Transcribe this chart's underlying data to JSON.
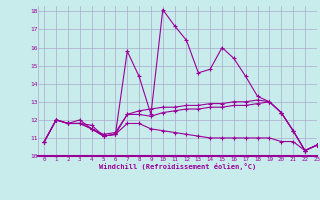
{
  "xlabel": "Windchill (Refroidissement éolien,°C)",
  "background_color": "#c8ecec",
  "grid_color": "#aaaacc",
  "line_color": "#990099",
  "xlim": [
    -0.5,
    23
  ],
  "ylim": [
    10,
    18.3
  ],
  "yticks": [
    10,
    11,
    12,
    13,
    14,
    15,
    16,
    17,
    18
  ],
  "xticks": [
    0,
    1,
    2,
    3,
    4,
    5,
    6,
    7,
    8,
    9,
    10,
    11,
    12,
    13,
    14,
    15,
    16,
    17,
    18,
    19,
    20,
    21,
    22,
    23
  ],
  "lines": [
    [
      10.8,
      12.0,
      11.8,
      11.8,
      11.7,
      11.1,
      11.2,
      15.8,
      14.4,
      12.3,
      18.1,
      17.2,
      16.4,
      14.6,
      14.8,
      16.0,
      15.4,
      14.4,
      13.3,
      13.0,
      12.4,
      11.4,
      10.3,
      10.6
    ],
    [
      10.8,
      12.0,
      11.8,
      12.0,
      11.5,
      11.2,
      11.3,
      12.3,
      12.5,
      12.6,
      12.7,
      12.7,
      12.8,
      12.8,
      12.9,
      12.9,
      13.0,
      13.0,
      13.1,
      13.0,
      12.4,
      11.4,
      10.3,
      10.6
    ],
    [
      10.8,
      12.0,
      11.8,
      11.8,
      11.5,
      11.1,
      11.2,
      12.3,
      12.3,
      12.2,
      12.4,
      12.5,
      12.6,
      12.6,
      12.7,
      12.7,
      12.8,
      12.8,
      12.9,
      13.0,
      12.4,
      11.4,
      10.3,
      10.6
    ],
    [
      10.8,
      12.0,
      11.8,
      11.8,
      11.5,
      11.1,
      11.2,
      11.8,
      11.8,
      11.5,
      11.4,
      11.3,
      11.2,
      11.1,
      11.0,
      11.0,
      11.0,
      11.0,
      11.0,
      11.0,
      10.8,
      10.8,
      10.3,
      10.6
    ]
  ]
}
